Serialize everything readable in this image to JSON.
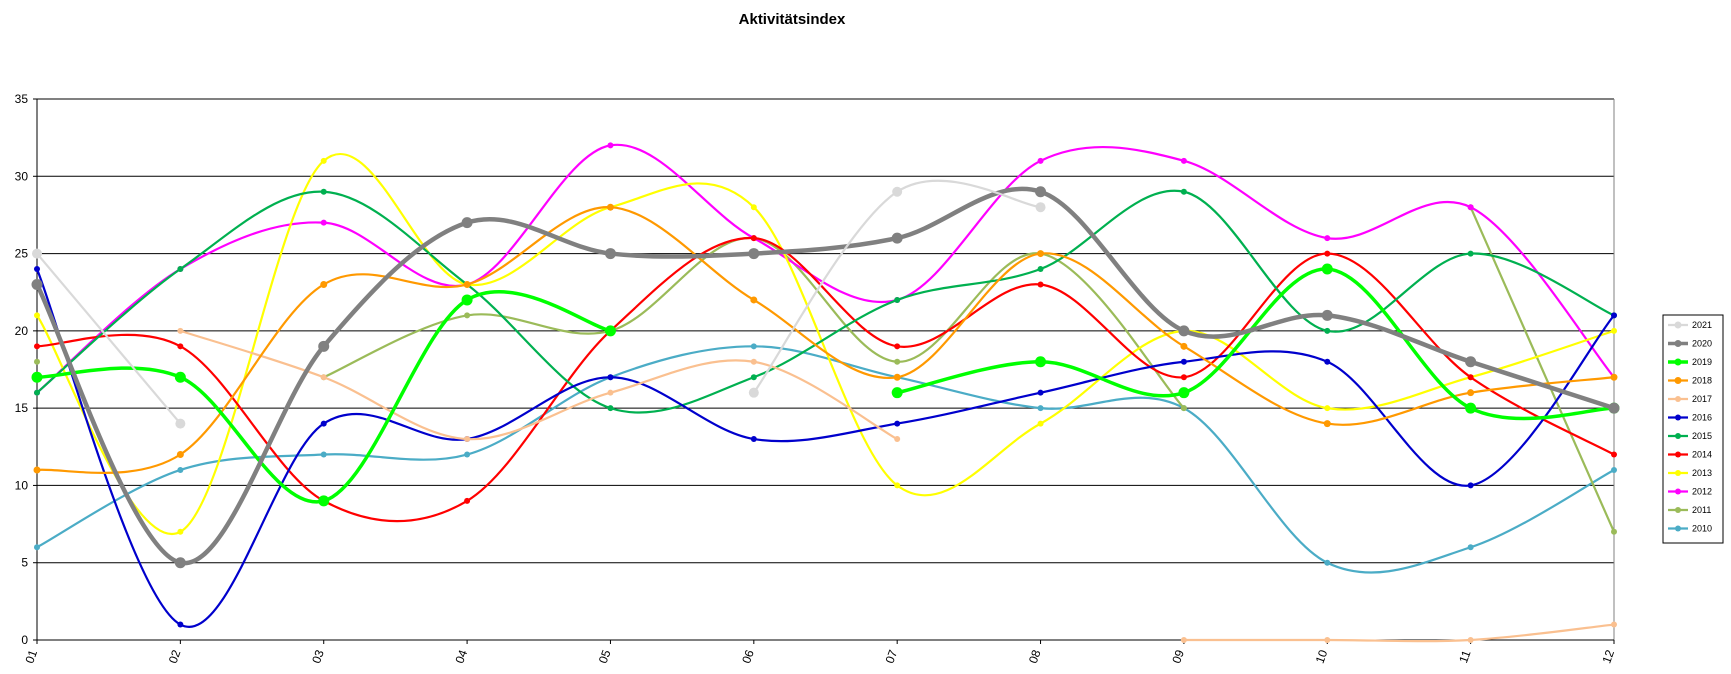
{
  "chart_data": {
    "type": "line",
    "title": "Aktivitätsindex",
    "xlabel": "",
    "ylabel": "",
    "categories": [
      "01",
      "02",
      "03",
      "04",
      "05",
      "06",
      "07",
      "08",
      "09",
      "10",
      "11",
      "12"
    ],
    "ylim": [
      0,
      35
    ],
    "yticks": [
      0,
      5,
      10,
      15,
      20,
      25,
      30,
      35
    ],
    "grid": "horizontal",
    "legend_position": "right",
    "smooth": true,
    "series": [
      {
        "name": "2021",
        "color": "#d9d9d9",
        "width": 2.2,
        "marker": 5,
        "values": [
          25,
          14,
          null,
          null,
          null,
          16,
          29,
          28,
          null,
          null,
          null,
          null
        ]
      },
      {
        "name": "2020",
        "color": "#808080",
        "width": 4.5,
        "marker": 5.5,
        "values": [
          23,
          5,
          19,
          27,
          25,
          25,
          26,
          29,
          20,
          21,
          18,
          15
        ]
      },
      {
        "name": "2019",
        "color": "#00ff00",
        "width": 3.5,
        "marker": 5.5,
        "values": [
          17,
          17,
          9,
          22,
          20,
          null,
          16,
          18,
          16,
          24,
          15,
          15
        ]
      },
      {
        "name": "2018",
        "color": "#ff9900",
        "width": 2.2,
        "marker": 3.5,
        "values": [
          11,
          12,
          23,
          23,
          28,
          22,
          17,
          25,
          19,
          14,
          16,
          17
        ]
      },
      {
        "name": "2017",
        "color": "#fac090",
        "width": 2.2,
        "marker": 3,
        "values": [
          null,
          20,
          17,
          13,
          16,
          18,
          13,
          null,
          0,
          0,
          0,
          1
        ]
      },
      {
        "name": "2016",
        "color": "#0000cc",
        "width": 2.2,
        "marker": 3,
        "values": [
          24,
          1,
          14,
          13,
          17,
          13,
          14,
          16,
          18,
          18,
          10,
          21
        ]
      },
      {
        "name": "2015",
        "color": "#00b050",
        "width": 2.2,
        "marker": 3,
        "values": [
          16,
          24,
          29,
          23,
          15,
          17,
          22,
          24,
          29,
          20,
          25,
          21
        ]
      },
      {
        "name": "2014",
        "color": "#ff0000",
        "width": 2.2,
        "marker": 3,
        "values": [
          19,
          19,
          9,
          9,
          20,
          26,
          19,
          23,
          17,
          25,
          17,
          12
        ]
      },
      {
        "name": "2013",
        "color": "#ffff00",
        "width": 2.2,
        "marker": 3,
        "values": [
          21,
          7,
          31,
          23,
          28,
          28,
          10,
          14,
          20,
          15,
          17,
          20
        ]
      },
      {
        "name": "2012",
        "color": "#ff00ff",
        "width": 2.2,
        "marker": 3,
        "values": [
          16,
          24,
          27,
          23,
          32,
          26,
          22,
          31,
          31,
          26,
          28,
          17
        ]
      },
      {
        "name": "2011",
        "color": "#9bbb59",
        "width": 2.2,
        "marker": 3,
        "values": [
          18,
          null,
          17,
          21,
          20,
          26,
          18,
          25,
          15,
          null,
          28,
          7
        ]
      },
      {
        "name": "2010",
        "color": "#4bacc6",
        "width": 2.2,
        "marker": 3,
        "values": [
          6,
          11,
          12,
          12,
          17,
          19,
          17,
          15,
          15,
          5,
          6,
          11
        ]
      }
    ]
  }
}
